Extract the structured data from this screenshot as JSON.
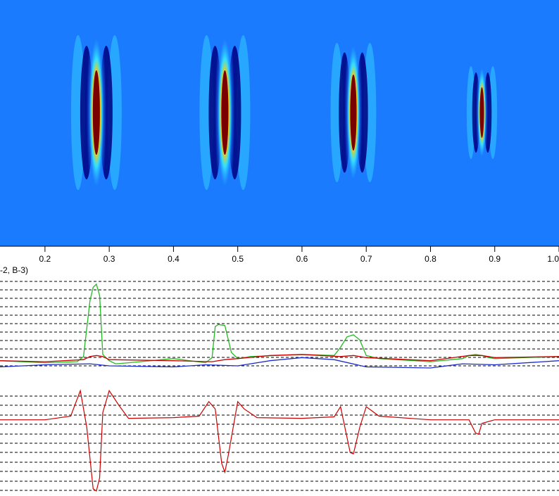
{
  "panel_label": "-2, B-3)",
  "colors": {
    "background": "#1a7bff",
    "series_red": "#cc0000",
    "series_green": "#22bb22",
    "series_blue": "#1a2bcc",
    "dashed": "#000000"
  },
  "chart_data": [
    {
      "type": "heatmap",
      "description_colormap": "jet",
      "xlim": [
        0.13,
        1.0
      ],
      "x_ticks": [
        "0.2",
        "0.3",
        "0.4",
        "0.5",
        "0.6",
        "0.7",
        "0.8",
        "0.9",
        "1.0"
      ],
      "x_tick_values": [
        0.2,
        0.3,
        0.4,
        0.5,
        0.6,
        0.7,
        0.8,
        0.9,
        1.0
      ],
      "features": [
        {
          "x": 0.28,
          "intensity": 1.0
        },
        {
          "x": 0.48,
          "intensity": 1.0
        },
        {
          "x": 0.68,
          "intensity": 0.9
        },
        {
          "x": 0.88,
          "intensity": 0.6
        }
      ]
    },
    {
      "type": "line",
      "xlim": [
        0.13,
        1.0
      ],
      "ylim": [
        0,
        1
      ],
      "grid": "dashed-horizontal",
      "series": [
        {
          "color_key": "series_green",
          "x": [
            0.13,
            0.2,
            0.25,
            0.26,
            0.27,
            0.275,
            0.28,
            0.285,
            0.29,
            0.3,
            0.31,
            0.33,
            0.4,
            0.45,
            0.46,
            0.465,
            0.47,
            0.48,
            0.49,
            0.5,
            0.52,
            0.6,
            0.65,
            0.66,
            0.67,
            0.68,
            0.69,
            0.7,
            0.72,
            0.8,
            0.85,
            0.86,
            0.87,
            0.88,
            0.89,
            0.9,
            1.0
          ],
          "y": [
            0.22,
            0.2,
            0.21,
            0.26,
            0.8,
            0.93,
            0.96,
            0.85,
            0.28,
            0.22,
            0.19,
            0.2,
            0.24,
            0.2,
            0.25,
            0.55,
            0.57,
            0.56,
            0.3,
            0.24,
            0.26,
            0.28,
            0.27,
            0.35,
            0.45,
            0.47,
            0.42,
            0.27,
            0.24,
            0.21,
            0.24,
            0.27,
            0.28,
            0.27,
            0.25,
            0.24,
            0.26
          ]
        },
        {
          "color_key": "series_red",
          "x": [
            0.13,
            0.2,
            0.26,
            0.27,
            0.28,
            0.29,
            0.3,
            0.4,
            0.46,
            0.48,
            0.5,
            0.55,
            0.6,
            0.66,
            0.68,
            0.7,
            0.8,
            0.86,
            0.88,
            0.9,
            1.0
          ],
          "y": [
            0.22,
            0.21,
            0.23,
            0.26,
            0.27,
            0.26,
            0.23,
            0.22,
            0.21,
            0.23,
            0.24,
            0.27,
            0.28,
            0.26,
            0.27,
            0.25,
            0.22,
            0.27,
            0.27,
            0.25,
            0.26
          ]
        },
        {
          "color_key": "series_blue",
          "x": [
            0.13,
            0.2,
            0.27,
            0.3,
            0.4,
            0.45,
            0.5,
            0.55,
            0.6,
            0.65,
            0.7,
            0.8,
            0.85,
            0.9,
            1.0
          ],
          "y": [
            0.16,
            0.18,
            0.19,
            0.17,
            0.16,
            0.18,
            0.17,
            0.22,
            0.25,
            0.23,
            0.16,
            0.15,
            0.19,
            0.18,
            0.22
          ]
        }
      ]
    },
    {
      "type": "line",
      "xlim": [
        0.13,
        1.0
      ],
      "ylim": [
        -1,
        0.5
      ],
      "grid": "dashed-horizontal",
      "series": [
        {
          "color_key": "series_red",
          "x": [
            0.13,
            0.2,
            0.24,
            0.255,
            0.265,
            0.275,
            0.28,
            0.285,
            0.29,
            0.3,
            0.315,
            0.33,
            0.4,
            0.44,
            0.455,
            0.465,
            0.475,
            0.48,
            0.485,
            0.5,
            0.51,
            0.53,
            0.6,
            0.65,
            0.66,
            0.675,
            0.68,
            0.69,
            0.7,
            0.72,
            0.8,
            0.86,
            0.87,
            0.875,
            0.88,
            0.9,
            1.0
          ],
          "y": [
            0.0,
            0.0,
            0.05,
            0.4,
            -0.1,
            -0.95,
            -0.98,
            -0.8,
            0.1,
            0.4,
            0.2,
            0.02,
            0.03,
            0.05,
            0.25,
            0.15,
            -0.6,
            -0.72,
            -0.5,
            0.25,
            0.15,
            0.03,
            0.02,
            0.04,
            0.18,
            -0.45,
            -0.47,
            -0.1,
            0.18,
            0.05,
            0.0,
            0.0,
            -0.18,
            -0.2,
            -0.05,
            0.0,
            0.0
          ]
        }
      ]
    }
  ]
}
